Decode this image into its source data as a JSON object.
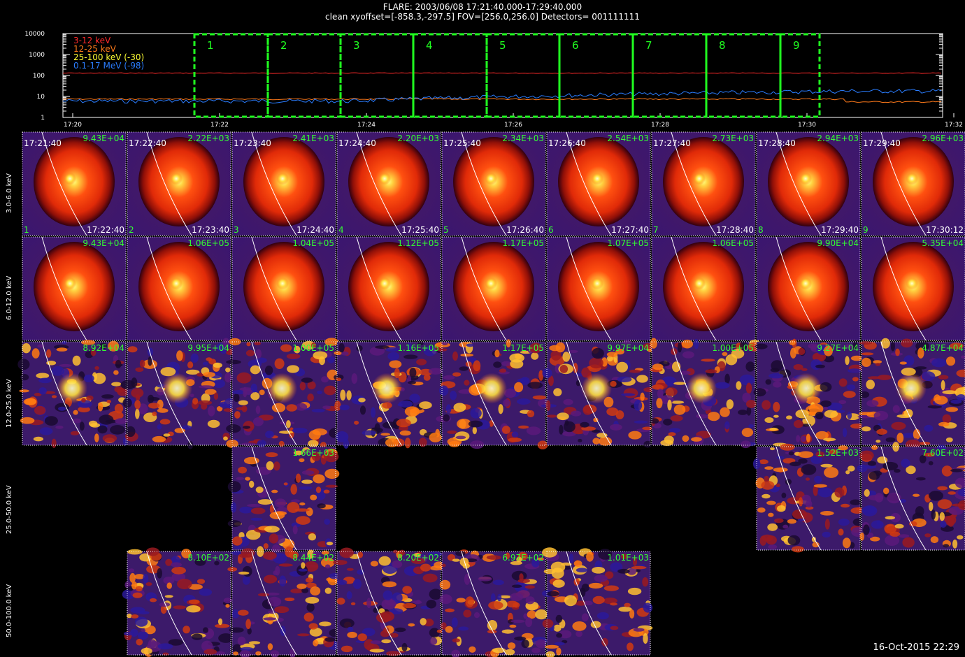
{
  "header": {
    "title": "FLARE: 2003/06/08 17:21:40.000-17:29:40.000",
    "subtitle": "clean   xyoffset=[-858.3,-297.5]   FOV=[256.0,256.0]   Detectors= 001111111"
  },
  "lightcurve": {
    "y_ticks": [
      "10000",
      "1000",
      "100",
      "10",
      "1"
    ],
    "x_ticks": [
      "17:20",
      "17:22",
      "17:24",
      "17:26",
      "17:28",
      "17:30",
      "17:32"
    ],
    "legend": [
      {
        "label": "3-12 keV",
        "color": "#ff2a2a"
      },
      {
        "label": "12-25 keV",
        "color": "#ff7a1a"
      },
      {
        "label": "25-100 keV (-30)",
        "color": "#ffff33"
      },
      {
        "label": "0.1-17 MeV (-98)",
        "color": "#2a7dff"
      }
    ],
    "intervals": [
      "1",
      "2",
      "3",
      "4",
      "5",
      "6",
      "7",
      "8",
      "9"
    ],
    "interval_color": "#20ff20"
  },
  "rows": [
    {
      "label": "3.0-6.0 keV"
    },
    {
      "label": "6.0-12.0 keV"
    },
    {
      "label": "12.0-25.0 keV"
    },
    {
      "label": "25.0-50.0 keV"
    },
    {
      "label": "50.0-100.0 keV"
    }
  ],
  "start_times": [
    "17:21:40",
    "17:22:40",
    "17:23:40",
    "17:24:40",
    "17:25:40",
    "17:26:40",
    "17:27:40",
    "17:28:40",
    "17:29:40"
  ],
  "end_times": [
    "17:22:40",
    "17:23:40",
    "17:24:40",
    "17:25:40",
    "17:26:40",
    "17:27:40",
    "17:28:40",
    "17:29:40",
    "17:30:12"
  ],
  "panel_values": {
    "r0": [
      "9.43E+04",
      "2.22E+03",
      "2.41E+03",
      "2.20E+03",
      "2.34E+03",
      "2.54E+03",
      "2.73E+03",
      "2.94E+03",
      "2.96E+03"
    ],
    "r1": [
      "9.43E+04",
      "1.06E+05",
      "1.04E+05",
      "1.12E+05",
      "1.17E+05",
      "1.07E+05",
      "1.06E+05",
      "9.90E+04",
      "5.35E+04"
    ],
    "r2": [
      "8.92E+04",
      "9.95E+04",
      "1.00E+05",
      "1.16E+05",
      "1.17E+05",
      "9.97E+04",
      "1.00E+05",
      "9.27E+04",
      "4.87E+04"
    ],
    "r3": [
      "",
      "",
      "1.66E+03",
      "",
      "",
      "",
      "",
      "1.52E+03",
      "7.60E+02"
    ],
    "r4": [
      "",
      "8.10E+02",
      "8.44E+02",
      "8.20E+02",
      "6.97E+02",
      "1.01E+03",
      "",
      "",
      ""
    ]
  },
  "footer": {
    "date": "16-Oct-2015 22:29"
  },
  "colors": {
    "value_text": "#33ff33",
    "limb": "#ffffff"
  }
}
